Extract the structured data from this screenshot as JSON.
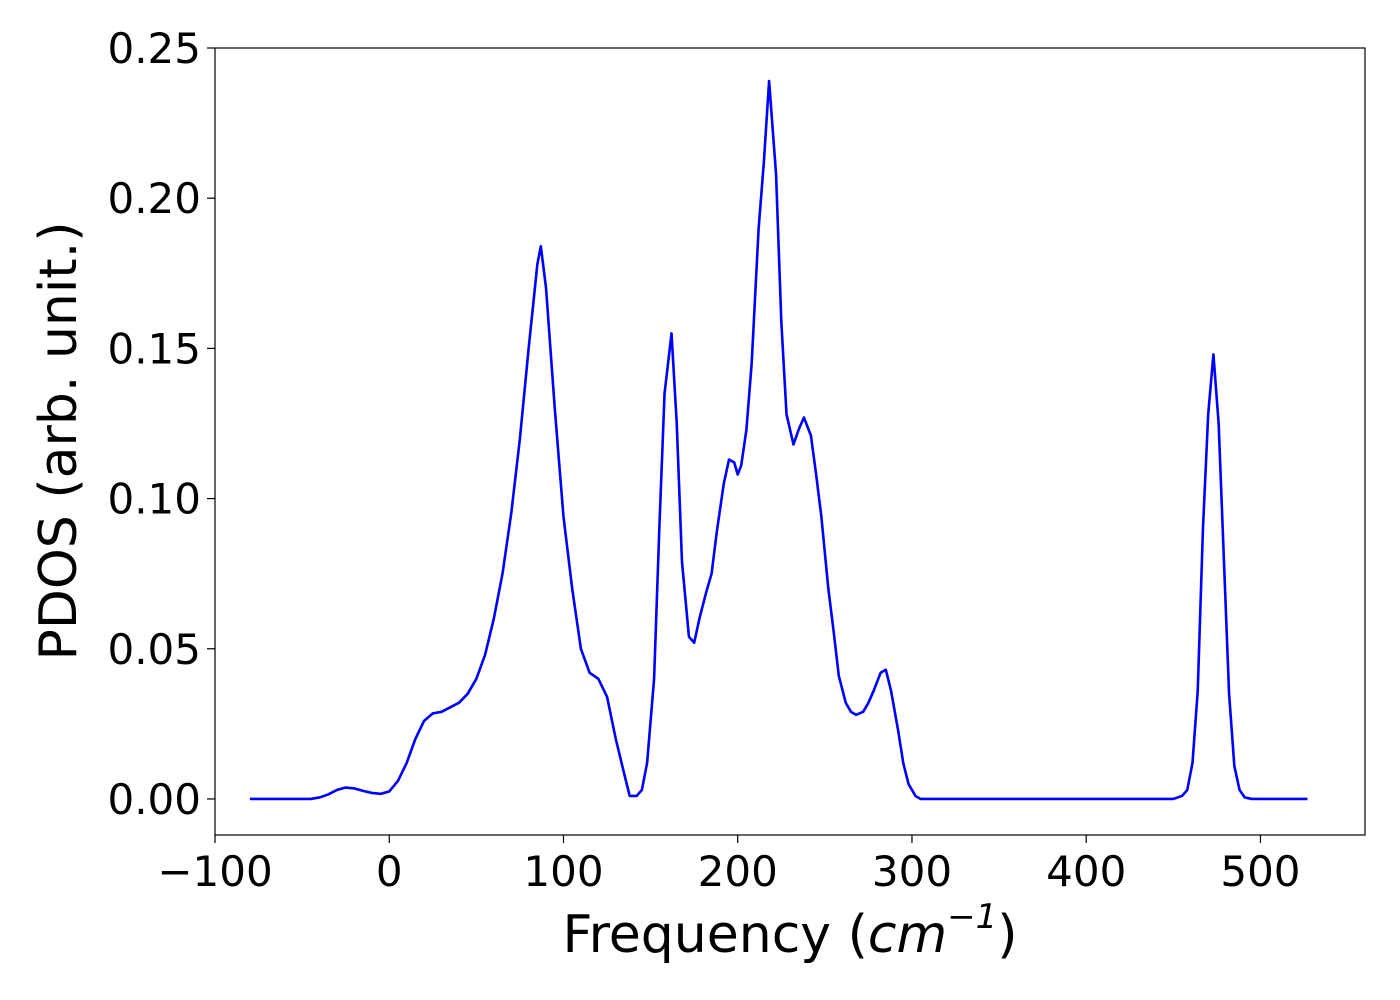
{
  "chart_data": {
    "type": "line",
    "title": "",
    "xlabel_text": "Frequency (",
    "xlabel_unit": "cm",
    "xlabel_exp": "−1",
    "xlabel_close": ")",
    "ylabel": "PDOS (arb. unit.)",
    "xlim": [
      -100,
      560
    ],
    "ylim": [
      -0.012,
      0.25
    ],
    "xticks": [
      -100,
      0,
      100,
      200,
      300,
      400,
      500
    ],
    "xtick_labels": [
      "−100",
      "0",
      "100",
      "200",
      "300",
      "400",
      "500"
    ],
    "yticks": [
      0.0,
      0.05,
      0.1,
      0.15,
      0.2,
      0.25
    ],
    "ytick_labels": [
      "0.00",
      "0.05",
      "0.10",
      "0.15",
      "0.20",
      "0.25"
    ],
    "grid": false,
    "line_color": "#0000ff",
    "series": [
      {
        "x": [
          -80,
          -45,
          -40,
          -35,
          -30,
          -25,
          -20,
          -15,
          -10,
          -5,
          0,
          5,
          10,
          15,
          20,
          25,
          30,
          35,
          40,
          45,
          50,
          55,
          60,
          65,
          70,
          75,
          80,
          85,
          87,
          90,
          95,
          100,
          105,
          110,
          115,
          120,
          125,
          130,
          135,
          138,
          142,
          145,
          148,
          152,
          155,
          158,
          162,
          165,
          168,
          172,
          175,
          178,
          182,
          185,
          188,
          192,
          195,
          198,
          200,
          202,
          205,
          208,
          212,
          215,
          218,
          222,
          225,
          228,
          232,
          235,
          238,
          242,
          245,
          248,
          252,
          255,
          258,
          262,
          265,
          268,
          272,
          275,
          278,
          282,
          285,
          288,
          292,
          295,
          298,
          302,
          305,
          310,
          320,
          350,
          400,
          450,
          455,
          458,
          461,
          464,
          467,
          470,
          473,
          476,
          479,
          482,
          485,
          488,
          491,
          495,
          500,
          510,
          527
        ],
        "y": [
          0.0,
          0.0,
          0.0005,
          0.0015,
          0.003,
          0.0038,
          0.0035,
          0.0027,
          0.002,
          0.0017,
          0.0025,
          0.006,
          0.012,
          0.02,
          0.026,
          0.0285,
          0.029,
          0.0305,
          0.032,
          0.035,
          0.04,
          0.048,
          0.06,
          0.075,
          0.095,
          0.12,
          0.15,
          0.178,
          0.184,
          0.17,
          0.13,
          0.094,
          0.07,
          0.05,
          0.042,
          0.04,
          0.034,
          0.02,
          0.008,
          0.001,
          0.001,
          0.003,
          0.012,
          0.04,
          0.09,
          0.135,
          0.155,
          0.125,
          0.079,
          0.054,
          0.052,
          0.06,
          0.069,
          0.075,
          0.089,
          0.105,
          0.113,
          0.112,
          0.108,
          0.111,
          0.123,
          0.145,
          0.19,
          0.212,
          0.239,
          0.208,
          0.159,
          0.128,
          0.118,
          0.123,
          0.127,
          0.121,
          0.108,
          0.094,
          0.07,
          0.056,
          0.041,
          0.032,
          0.029,
          0.028,
          0.029,
          0.032,
          0.036,
          0.042,
          0.043,
          0.036,
          0.023,
          0.012,
          0.005,
          0.001,
          0.0,
          0.0,
          0.0,
          0.0,
          0.0,
          0.0,
          0.001,
          0.003,
          0.012,
          0.036,
          0.09,
          0.128,
          0.148,
          0.125,
          0.08,
          0.035,
          0.011,
          0.003,
          0.0005,
          0.0,
          0.0,
          0.0,
          0.0
        ]
      }
    ]
  }
}
